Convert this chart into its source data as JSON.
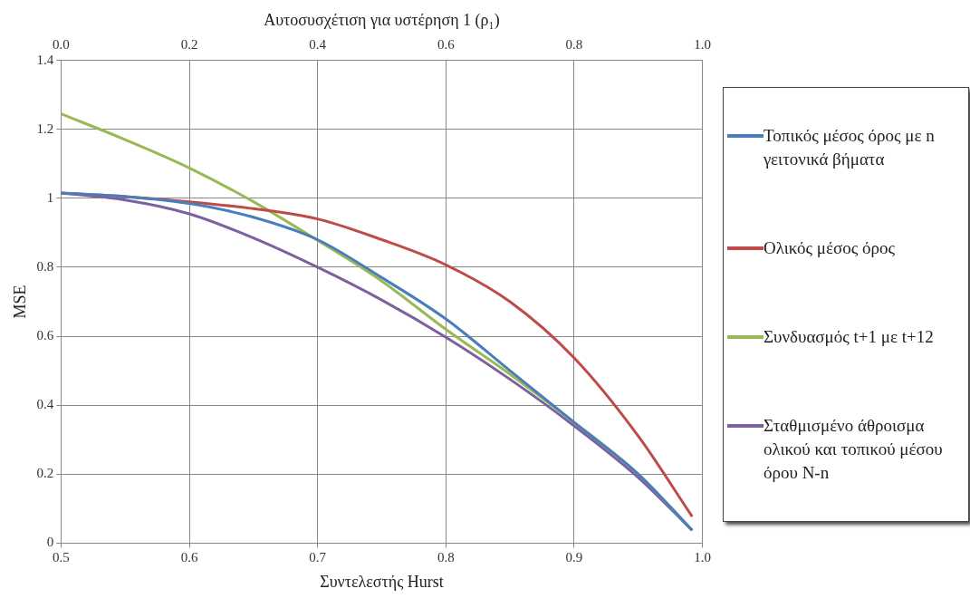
{
  "chart_data": {
    "type": "line",
    "xlabel": "Συντελεστής Hurst",
    "ylabel": "MSE",
    "x2label": "Αυτοσυσχέτιση για υστέρηση 1 (ρ₁)",
    "xlim": [
      0.5,
      1.0
    ],
    "xticks": [
      0.5,
      0.6,
      0.7,
      0.8,
      0.9,
      {
        "value": 1.0,
        "label": "1.0"
      }
    ],
    "x2lim": [
      0,
      1
    ],
    "x2ticks": [
      {
        "value": 0,
        "label": "0.0"
      },
      0.2,
      0.4,
      0.6,
      0.8,
      {
        "value": 1.0,
        "label": "1.0"
      }
    ],
    "ylim": [
      0,
      1.4
    ],
    "yticks": [
      0,
      0.2,
      0.4,
      0.6,
      0.8,
      1,
      1.2,
      1.4
    ],
    "grid": true,
    "legend": "right",
    "marker": "none",
    "line_style": "solid",
    "x": [
      0.5,
      0.55,
      0.6,
      0.65,
      0.7,
      0.75,
      0.8,
      0.85,
      0.9,
      0.95,
      0.992
    ],
    "series": [
      {
        "name": "Τοπικός μέσος όρος με n γειτονικά βήματα",
        "color": "#4a7ebb",
        "values": [
          1.015,
          1.005,
          0.985,
          0.945,
          0.88,
          0.77,
          0.65,
          0.5,
          0.35,
          0.2,
          0.037
        ]
      },
      {
        "name": "Ολικός μέσος όρος",
        "color": "#be4b48",
        "values": [
          1.015,
          1.005,
          0.99,
          0.97,
          0.94,
          0.88,
          0.807,
          0.7,
          0.537,
          0.31,
          0.077
        ]
      },
      {
        "name": "Συνδυασμός t+1 με t+12",
        "color": "#98b954",
        "values": [
          1.245,
          1.17,
          1.088,
          0.99,
          0.878,
          0.76,
          0.62,
          0.49,
          0.35,
          0.2,
          0.037
        ]
      },
      {
        "name": "Σταθμισμένο άθροισμα ολικού και τοπικού μέσου όρου N-n",
        "color": "#7d60a0",
        "values": [
          1.015,
          0.995,
          0.955,
          0.885,
          0.8,
          0.705,
          0.597,
          0.475,
          0.34,
          0.19,
          0.037
        ]
      }
    ]
  }
}
